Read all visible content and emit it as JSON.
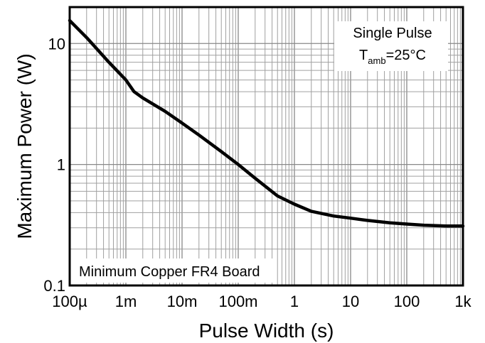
{
  "chart_data": {
    "type": "line",
    "xscale": "log",
    "yscale": "log",
    "xlim": [
      0.0001,
      1000
    ],
    "ylim": [
      0.1,
      20
    ],
    "grid": true,
    "xlabel": "Pulse Width (s)",
    "ylabel": "Maximum Power (W)",
    "x_ticks": [
      {
        "value": 0.0001,
        "label": "100µ"
      },
      {
        "value": 0.001,
        "label": "1m"
      },
      {
        "value": 0.01,
        "label": "10m"
      },
      {
        "value": 0.1,
        "label": "100m"
      },
      {
        "value": 1,
        "label": "1"
      },
      {
        "value": 10,
        "label": "10"
      },
      {
        "value": 100,
        "label": "100"
      },
      {
        "value": 1000,
        "label": "1k"
      }
    ],
    "y_ticks": [
      {
        "value": 0.1,
        "label": "0.1"
      },
      {
        "value": 1,
        "label": "1"
      },
      {
        "value": 10,
        "label": "10"
      }
    ],
    "annotations": {
      "condition_line1": "Single Pulse",
      "tamb_symbol": "T",
      "tamb_subscript": "amb",
      "tamb_value": "=25°C",
      "board_note": "Minimum Copper FR4 Board"
    },
    "series": [
      {
        "color": "#000000",
        "x": [
          0.0001,
          0.0002,
          0.0005,
          0.001,
          0.0014,
          0.002,
          0.005,
          0.01,
          0.02,
          0.05,
          0.1,
          0.2,
          0.5,
          1,
          2,
          5,
          10,
          20,
          50,
          100,
          200,
          500,
          1000
        ],
        "y": [
          15.5,
          11.2,
          7.0,
          5.0,
          4.0,
          3.55,
          2.75,
          2.2,
          1.75,
          1.28,
          1.0,
          0.77,
          0.55,
          0.47,
          0.41,
          0.375,
          0.36,
          0.345,
          0.33,
          0.322,
          0.315,
          0.31,
          0.31
        ]
      }
    ]
  }
}
